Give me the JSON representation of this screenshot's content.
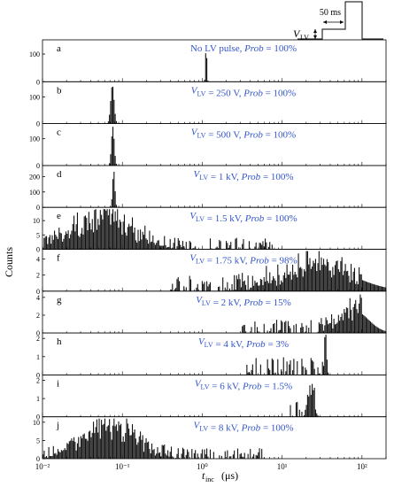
{
  "figure": {
    "ylabel": "Counts",
    "xlabel_main": "t",
    "xlabel_sub": "inc",
    "xlabel_unit": "(μs)"
  },
  "inset": {
    "v_main": "V",
    "v_sub": "LV",
    "duration": "50 ms"
  },
  "colors": {
    "bars": "#111111",
    "annotation": "#3355cc",
    "axes": "#000000"
  },
  "chart_data": {
    "type": "bar",
    "x_scale": "log",
    "xlim": [
      0.01,
      200
    ],
    "x_ticks": [
      0.01,
      0.1,
      1,
      10,
      100
    ],
    "x_tick_labels": [
      "10⁻²",
      "10⁻¹",
      "10⁰",
      "10¹",
      "10²"
    ],
    "panels": [
      {
        "letter": "a",
        "label": "No LV pulse",
        "prob": "100%",
        "yticks": [
          0,
          100
        ],
        "ymax": 145,
        "peaks": [
          {
            "center": 1.12,
            "width": 0.012,
            "height": 135
          }
        ],
        "noise": 0,
        "start": 0.0,
        "end": 0.0
      },
      {
        "letter": "b",
        "label": "V_LV = 250 V",
        "prob": "100%",
        "yticks": [
          0,
          100
        ],
        "ymax": 150,
        "peaks": [
          {
            "center": 0.075,
            "width": 0.03,
            "height": 145
          }
        ],
        "noise": 0,
        "start": 0.0,
        "end": 0.0
      },
      {
        "letter": "c",
        "label": "V_LV = 500 V",
        "prob": "100%",
        "yticks": [
          0,
          100
        ],
        "ymax": 150,
        "peaks": [
          {
            "center": 0.076,
            "width": 0.025,
            "height": 145
          }
        ],
        "noise": 0,
        "start": 0.0,
        "end": 0.0
      },
      {
        "letter": "d",
        "label": "V_LV = 1 kV",
        "prob": "100%",
        "yticks": [
          0,
          100,
          200
        ],
        "ymax": 260,
        "peaks": [
          {
            "center": 0.078,
            "width": 0.02,
            "height": 240
          }
        ],
        "noise": 0,
        "start": 0.0,
        "end": 0.0
      },
      {
        "letter": "e",
        "label": "V_LV = 1.5 kV",
        "prob": "100%",
        "yticks": [
          0,
          5,
          10
        ],
        "ymax": 14,
        "peaks": [
          {
            "center": 0.055,
            "width": 0.5,
            "height": 10
          }
        ],
        "noise": 4,
        "start": 0.01,
        "end": 8
      },
      {
        "letter": "f",
        "label": "V_LV = 1.75 kV",
        "prob": "98%",
        "yticks": [
          0,
          2,
          4
        ],
        "ymax": 5,
        "peaks": [
          {
            "center": 30,
            "width": 0.6,
            "height": 3
          }
        ],
        "noise": 2,
        "start": 0.4,
        "end": 100
      },
      {
        "letter": "g",
        "label": "V_LV = 2 kV",
        "prob": "15%",
        "yticks": [
          0,
          2,
          4
        ],
        "ymax": 4.5,
        "peaks": [
          {
            "center": 80,
            "width": 0.25,
            "height": 2.5
          }
        ],
        "noise": 1.5,
        "start": 3,
        "end": 100
      },
      {
        "letter": "h",
        "label": "V_LV = 4 kV",
        "prob": "3%",
        "yticks": [
          0,
          1,
          2
        ],
        "ymax": 2.2,
        "peaks": [
          {
            "center": 35,
            "width": 0.02,
            "height": 2
          }
        ],
        "noise": 1,
        "start": 3.5,
        "end": 36
      },
      {
        "letter": "i",
        "label": "V_LV = 6 kV",
        "prob": "1.5%",
        "yticks": [
          0,
          1,
          2
        ],
        "ymax": 2.2,
        "peaks": [
          {
            "center": 23,
            "width": 0.05,
            "height": 1.5
          }
        ],
        "noise": 1,
        "start": 12,
        "end": 26
      },
      {
        "letter": "j",
        "label": "V_LV = 8 kV",
        "prob": "100%",
        "yticks": [
          0,
          5,
          10
        ],
        "ymax": 11,
        "peaks": [
          {
            "center": 0.07,
            "width": 0.45,
            "height": 8
          }
        ],
        "noise": 3,
        "start": 0.01,
        "end": 6
      }
    ]
  }
}
